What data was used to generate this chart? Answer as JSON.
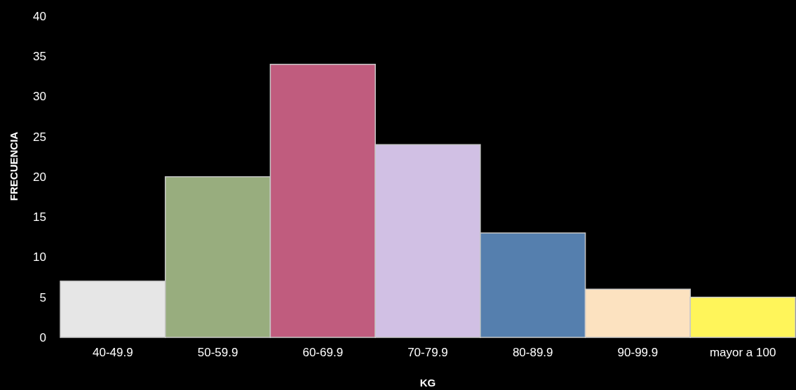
{
  "chart_data": {
    "type": "bar",
    "xlabel": "KG",
    "ylabel": "FRECUENCIA",
    "categories": [
      "40-49.9",
      "50-59.9",
      "60-69.9",
      "70-79.9",
      "80-89.9",
      "90-99.9",
      "mayor a 100"
    ],
    "values": [
      7,
      20,
      34,
      24,
      13,
      6,
      5
    ],
    "colors": [
      "#e6e6e6",
      "#98ad7e",
      "#c05c7e",
      "#d1c0e4",
      "#557fae",
      "#fce2c0",
      "#fff55a"
    ],
    "ylim": [
      0,
      40
    ],
    "yticks": [
      0,
      5,
      10,
      15,
      20,
      25,
      30,
      35,
      40
    ]
  }
}
